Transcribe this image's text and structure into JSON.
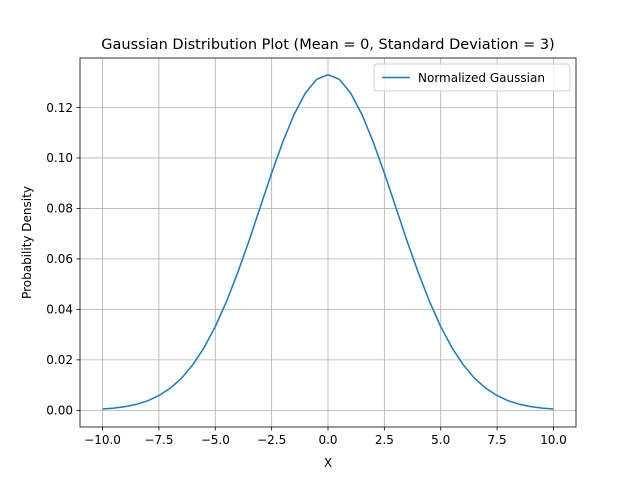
{
  "chart_data": {
    "type": "line",
    "title": "Gaussian Distribution Plot (Mean = 0, Standard Deviation = 3)",
    "xlabel": "X",
    "ylabel": "Probability Density",
    "xlim": [
      -11,
      11
    ],
    "ylim": [
      -0.0066,
      0.1396
    ],
    "x_ticks": [
      -10.0,
      -7.5,
      -5.0,
      -2.5,
      0.0,
      2.5,
      5.0,
      7.5,
      10.0
    ],
    "x_tick_labels": [
      "−10.0",
      "−7.5",
      "−5.0",
      "−2.5",
      "0.0",
      "2.5",
      "5.0",
      "7.5",
      "10.0"
    ],
    "y_ticks": [
      0.0,
      0.02,
      0.04,
      0.06,
      0.08,
      0.1,
      0.12
    ],
    "y_tick_labels": [
      "0.00",
      "0.02",
      "0.04",
      "0.06",
      "0.08",
      "0.10",
      "0.12"
    ],
    "grid": true,
    "legend_position": "top-right",
    "series": [
      {
        "name": "Normalized Gaussian",
        "color": "#1f77b4",
        "x": [
          -10,
          -9.5,
          -9,
          -8.5,
          -8,
          -7.5,
          -7,
          -6.5,
          -6,
          -5.5,
          -5,
          -4.5,
          -4,
          -3.5,
          -3,
          -2.5,
          -2,
          -1.5,
          -1,
          -0.5,
          0,
          0.5,
          1,
          1.5,
          2,
          2.5,
          3,
          3.5,
          4,
          4.5,
          5,
          5.5,
          6,
          6.5,
          7,
          7.5,
          8,
          8.5,
          9,
          9.5,
          10
        ],
        "y": [
          0.00051,
          0.00089,
          0.00148,
          0.00238,
          0.00379,
          0.00584,
          0.00874,
          0.01269,
          0.018,
          0.02479,
          0.03315,
          0.04318,
          0.05467,
          0.06724,
          0.08066,
          0.09397,
          0.10648,
          0.11732,
          0.12579,
          0.13115,
          0.13298,
          0.13115,
          0.12579,
          0.11732,
          0.10648,
          0.09397,
          0.08066,
          0.06724,
          0.05467,
          0.04318,
          0.03315,
          0.02479,
          0.018,
          0.01269,
          0.00874,
          0.00584,
          0.00379,
          0.00238,
          0.00148,
          0.00089,
          0.00051
        ]
      }
    ]
  }
}
